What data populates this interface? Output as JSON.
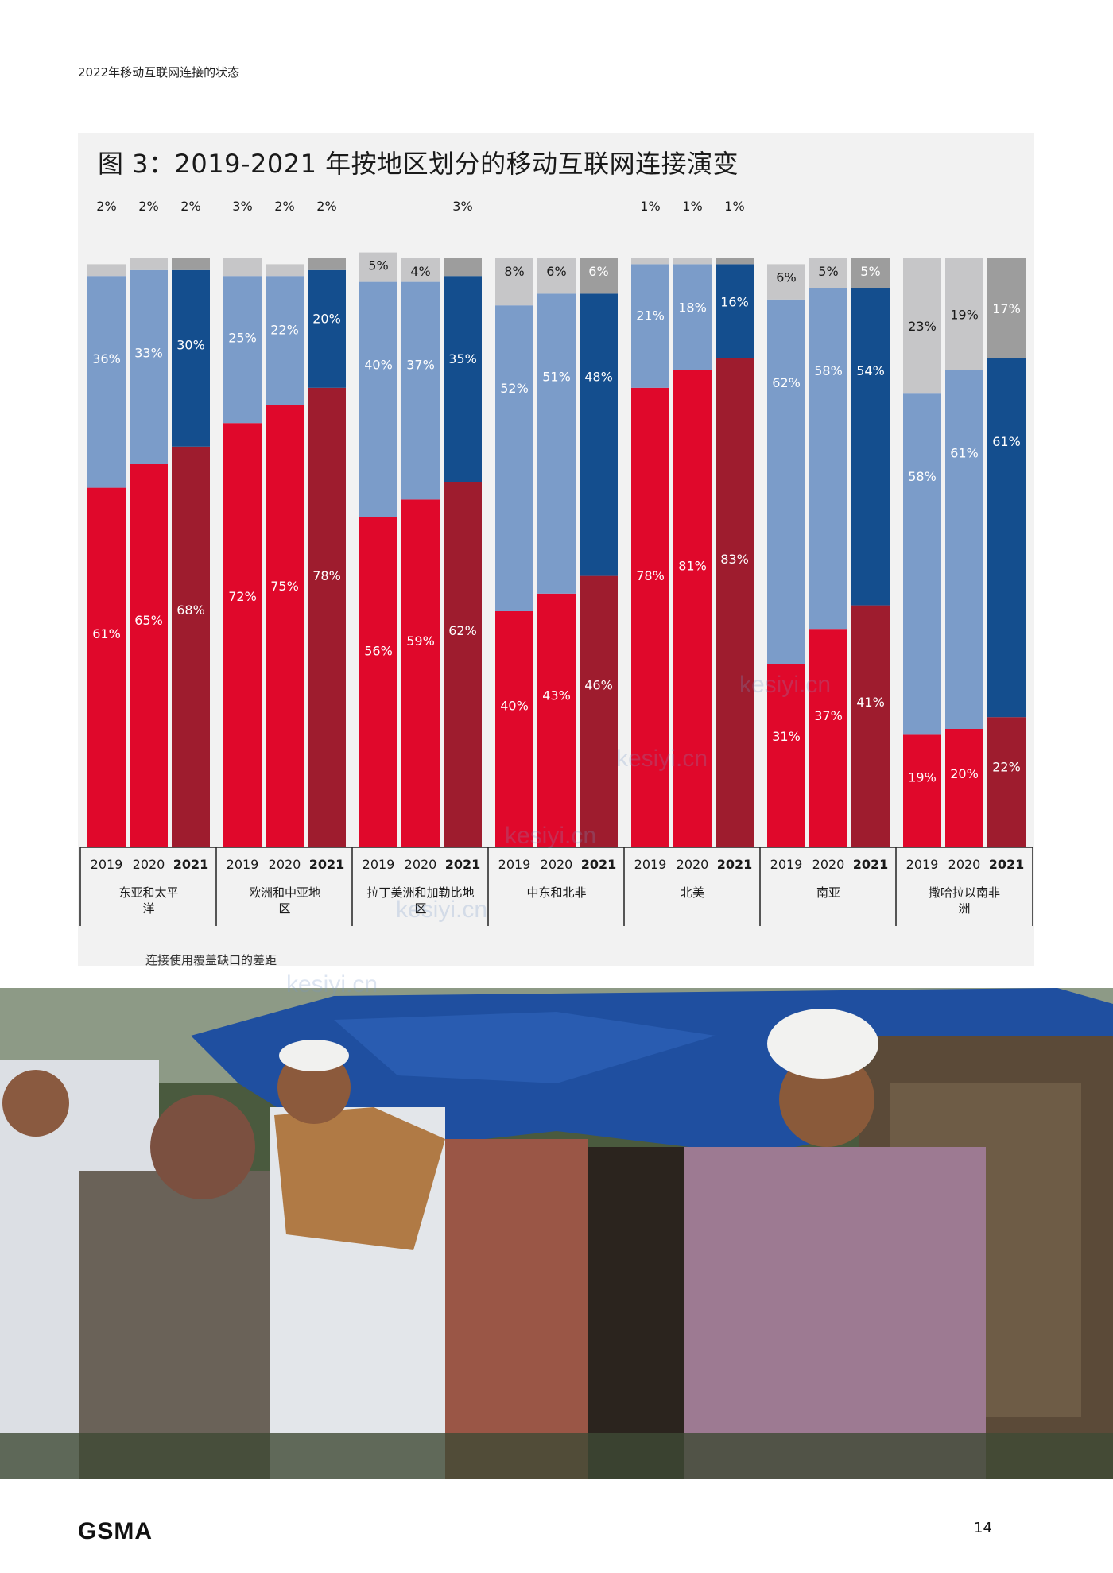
{
  "header": {
    "text": "2022年移动互联网连接的状态"
  },
  "figure": {
    "title": "图 3：2019-2021 年按地区划分的移动互联网连接演变"
  },
  "legend": {
    "gap_label": "连接使用覆盖缺口的差距"
  },
  "footer": {
    "logo": "GSMA",
    "page_number": "14"
  },
  "watermark": "kesiyi.cn",
  "colors": {
    "usage_2019_2020": "#e0082b",
    "usage_2021": "#9e1c2e",
    "usage_gap_2019_2020": "#7b9cc9",
    "usage_gap_2021": "#144e8e",
    "coverage_gap_2019_2020": "#c6c6c8",
    "coverage_gap_2021": "#9d9d9d"
  },
  "chart_data": {
    "type": "bar",
    "stacked": true,
    "years": [
      "2019",
      "2020",
      "2021"
    ],
    "series_order": [
      "usage",
      "usage_gap",
      "coverage_gap"
    ],
    "regions": [
      {
        "name": "东亚和太平洋",
        "usage": [
          61,
          65,
          68
        ],
        "usage_gap": [
          36,
          33,
          30
        ],
        "coverage_gap": [
          2,
          2,
          2
        ]
      },
      {
        "name": "欧洲和中亚地区",
        "usage": [
          72,
          75,
          78
        ],
        "usage_gap": [
          25,
          22,
          20
        ],
        "coverage_gap": [
          3,
          2,
          2
        ]
      },
      {
        "name": "拉丁美洲和加勒比地区",
        "usage": [
          56,
          59,
          62
        ],
        "usage_gap": [
          40,
          37,
          35
        ],
        "coverage_gap": [
          5,
          4,
          3
        ]
      },
      {
        "name": "中东和北非",
        "usage": [
          40,
          43,
          46
        ],
        "usage_gap": [
          52,
          51,
          48
        ],
        "coverage_gap": [
          8,
          6,
          6
        ]
      },
      {
        "name": "北美",
        "usage": [
          78,
          81,
          83
        ],
        "usage_gap": [
          21,
          18,
          16
        ],
        "coverage_gap": [
          1,
          1,
          1
        ]
      },
      {
        "name": "南亚",
        "usage": [
          31,
          37,
          41
        ],
        "usage_gap": [
          62,
          58,
          54
        ],
        "coverage_gap": [
          6,
          5,
          5
        ]
      },
      {
        "name": "撒哈拉以南非洲",
        "usage": [
          19,
          20,
          22
        ],
        "usage_gap": [
          58,
          61,
          61
        ],
        "coverage_gap": [
          23,
          19,
          17
        ]
      }
    ]
  }
}
